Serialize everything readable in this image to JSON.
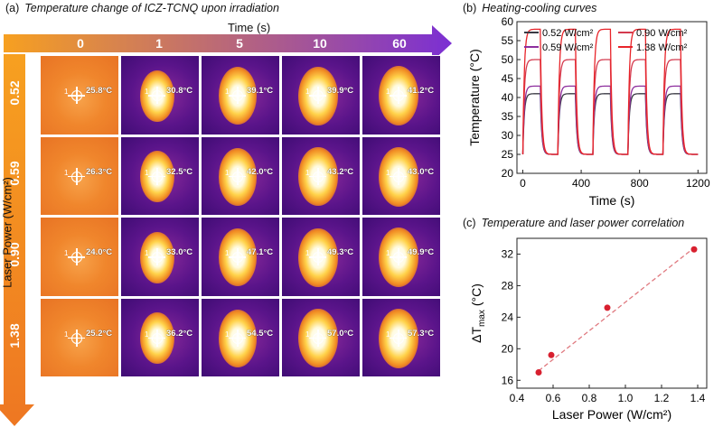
{
  "panel_a": {
    "letter": "(a)",
    "title": "Temperature change of ICZ-TCNQ upon irradiation",
    "time_axis_label": "Time (s)",
    "time_columns": [
      "0",
      "1",
      "5",
      "10",
      "60"
    ],
    "power_axis_label": "Laser Power (W/cm²)",
    "power_rows": [
      "0.52",
      "0.59",
      "0.90",
      "1.38"
    ],
    "spot_index": "1",
    "temperatures": [
      [
        "25.8°C",
        "30.8°C",
        "39.1°C",
        "39.9°C",
        "41.2°C"
      ],
      [
        "26.3°C",
        "32.5°C",
        "42.0°C",
        "43.2°C",
        "43.0°C"
      ],
      [
        "24.0°C",
        "33.0°C",
        "47.1°C",
        "49.3°C",
        "49.9°C"
      ],
      [
        "25.2°C",
        "36.2°C",
        "54.5°C",
        "57.0°C",
        "57.3°C"
      ]
    ],
    "colors": {
      "arrow_start": "#f59a23",
      "arrow_end": "#7b2fd3",
      "bg_hot": "#f0822a",
      "bg_cool": "#6a1b9a"
    }
  },
  "chart_data": [
    {
      "id": "b",
      "type": "line",
      "letter": "(b)",
      "title": "Heating-cooling curves",
      "xlabel": "Time (s)",
      "ylabel": "Temperature (°C)",
      "xlim": [
        -40,
        1260
      ],
      "ylim": [
        20,
        60
      ],
      "xticks": [
        0,
        400,
        800,
        1200
      ],
      "yticks": [
        20,
        25,
        30,
        35,
        40,
        45,
        50,
        55,
        60
      ],
      "xtick_labels": [
        "0",
        "400",
        "800",
        "1200"
      ],
      "ytick_labels": [
        "20",
        "25",
        "30",
        "35",
        "40",
        "45",
        "50",
        "55",
        "60"
      ],
      "cycles": 5,
      "cycle_period_s": 240,
      "on_duration_s": 120,
      "series": [
        {
          "name": "0.52 W/cm²",
          "color": "#3a3a44",
          "baseline": 25,
          "plateau": 41
        },
        {
          "name": "0.59 W/cm²",
          "color": "#8e2f9e",
          "baseline": 25,
          "plateau": 43
        },
        {
          "name": "0.90 W/cm²",
          "color": "#d43a4e",
          "baseline": 25,
          "plateau": 50
        },
        {
          "name": "1.38 W/cm²",
          "color": "#e8242a",
          "baseline": 25,
          "plateau": 58
        }
      ]
    },
    {
      "id": "c",
      "type": "scatter",
      "letter": "(c)",
      "title": "Temperature and laser power correlation",
      "xlabel": "Laser Power (W/cm²)",
      "ylabel": "ΔT",
      "ylabel_sub": "max",
      "ylabel_unit": "(°C)",
      "xlim": [
        0.4,
        1.45
      ],
      "ylim": [
        15,
        34
      ],
      "xticks": [
        0.4,
        0.6,
        0.8,
        1.0,
        1.2,
        1.4
      ],
      "yticks": [
        16,
        20,
        24,
        28,
        32
      ],
      "xtick_labels": [
        "0.4",
        "0.6",
        "0.8",
        "1.0",
        "1.2",
        "1.4"
      ],
      "ytick_labels": [
        "16",
        "20",
        "24",
        "28",
        "32"
      ],
      "x": [
        0.52,
        0.59,
        0.9,
        1.38
      ],
      "y": [
        17.0,
        19.2,
        25.2,
        32.6
      ],
      "fit": {
        "x": [
          0.52,
          1.38
        ],
        "y": [
          17.2,
          32.8
        ]
      },
      "point_color": "#d8202f",
      "fit_color": "#e07a80"
    }
  ]
}
